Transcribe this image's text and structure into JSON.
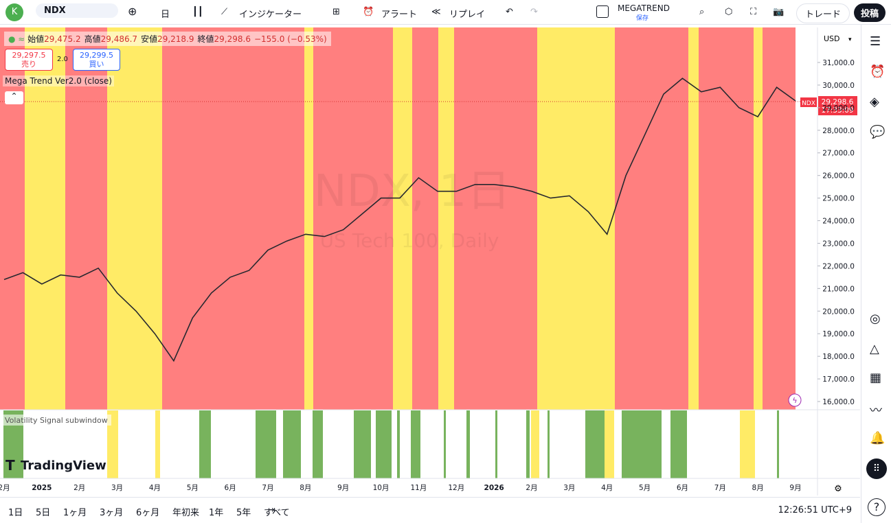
{
  "toolbar": {
    "avatar": "K",
    "symbol": "NDX",
    "interval": "日",
    "indicators": "インジケーター",
    "alert": "アラート",
    "replay": "リプレイ",
    "layout_name": "MEGATREND",
    "save": "保存",
    "trade": "トレード",
    "publish": "投稿"
  },
  "legend": {
    "items": [
      [
        "始値",
        "29,475.2"
      ],
      [
        "高値",
        "29,486.7"
      ],
      [
        "安値",
        "29,218.9"
      ],
      [
        "終値",
        "29,298.6"
      ]
    ],
    "change": "−155.0 (−0.53%)",
    "sell_price": "29,297.5",
    "sell": "売り",
    "spread": "2.0",
    "buy_price": "29,299.5",
    "buy": "買い",
    "indicator": "Mega Trend Ver2.0 (close)",
    "subwindow": "Volatility Signal subwindow"
  },
  "watermark": {
    "title": "NDX, 1日",
    "subtitle": "US Tech 100, Daily"
  },
  "price_axis": {
    "currency": "USD",
    "tag_symbol": "NDX",
    "tag_price": "29,298.6",
    "tag_time": "17:33:09"
  },
  "logo": "TradingView",
  "ranges": [
    "1日",
    "5日",
    "1ヶ月",
    "3ヶ月",
    "6ヶ月",
    "年初来",
    "1年",
    "5年",
    "すべて"
  ],
  "clock": "12:26:51 UTC+9",
  "chart_data": {
    "type": "line",
    "x": [
      "2月",
      null,
      "2025",
      null,
      "2月",
      null,
      "3月",
      null,
      "4月",
      null,
      "5月",
      null,
      "6月",
      null,
      "7月",
      null,
      "8月",
      null,
      "9月",
      null,
      "10月",
      null,
      "11月",
      null,
      "12月",
      null,
      "2026",
      null,
      "2月",
      null,
      "3月",
      null,
      "4月",
      null,
      "5月",
      null,
      "6月",
      null,
      "7月",
      null,
      "8月",
      null,
      "9月"
    ],
    "series": [
      {
        "name": "NDX",
        "color": "#26282f",
        "values": [
          21400,
          21700,
          21200,
          21600,
          21500,
          21900,
          20800,
          20000,
          19000,
          17800,
          19700,
          20800,
          21500,
          21800,
          22700,
          23100,
          23400,
          23300,
          23600,
          24300,
          25000,
          25000,
          25900,
          25300,
          25300,
          25600,
          25600,
          25500,
          25300,
          25000,
          25100,
          24400,
          23400,
          26000,
          27800,
          29600,
          30300,
          29700,
          29900,
          29000,
          28600,
          29900,
          29300
        ]
      }
    ],
    "ylim": [
      15666,
      32549
    ],
    "yticks": [
      {
        "value": 16000,
        "label": "16,000.0"
      },
      {
        "value": 17000,
        "label": "17,000.0"
      },
      {
        "value": 18000,
        "label": "18,000.0"
      },
      {
        "value": 19000,
        "label": "19,000.0"
      },
      {
        "value": 20000,
        "label": "20,000.0"
      },
      {
        "value": 21000,
        "label": "21,000.0"
      },
      {
        "value": 22000,
        "label": "22,000.0"
      },
      {
        "value": 23000,
        "label": "23,000.0"
      },
      {
        "value": 24000,
        "label": "24,000.0"
      },
      {
        "value": 25000,
        "label": "25,000.0"
      },
      {
        "value": 26000,
        "label": "26,000.0"
      },
      {
        "value": 27000,
        "label": "27,000.0"
      },
      {
        "value": 28000,
        "label": "28,000.0"
      },
      {
        "value": 29000,
        "label": "29,000.0"
      },
      {
        "value": 30000,
        "label": "30,000.0"
      },
      {
        "value": 31000,
        "label": "31,000.0"
      }
    ],
    "grid": false
  }
}
